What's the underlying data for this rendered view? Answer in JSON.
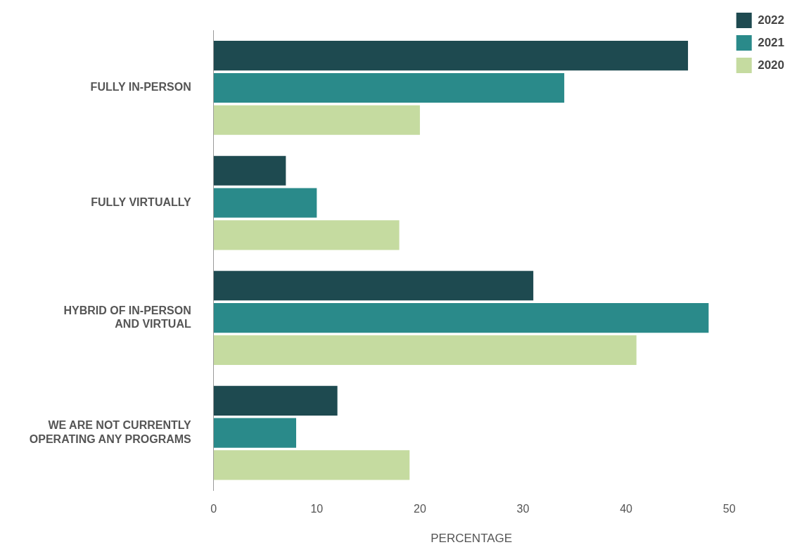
{
  "chart_data": {
    "type": "bar",
    "orientation": "horizontal",
    "xlabel": "PERCENTAGE",
    "categories": [
      "FULLY IN-PERSON",
      "FULLY VIRTUALLY",
      "HYBRID OF IN-PERSON AND VIRTUAL",
      "WE ARE NOT CURRENTLY OPERATING ANY PROGRAMS"
    ],
    "series": [
      {
        "name": "2022",
        "color": "#1e4a50",
        "values": [
          46,
          7,
          31,
          12
        ]
      },
      {
        "name": "2021",
        "color": "#2a8a8a",
        "values": [
          34,
          10,
          48,
          8
        ]
      },
      {
        "name": "2020",
        "color": "#c5dba0",
        "values": [
          20,
          18,
          41,
          19
        ]
      }
    ],
    "xlim": [
      0,
      50
    ],
    "xticks": [
      0,
      10,
      20,
      30,
      40,
      50
    ],
    "grid": false,
    "legend": "top right"
  }
}
